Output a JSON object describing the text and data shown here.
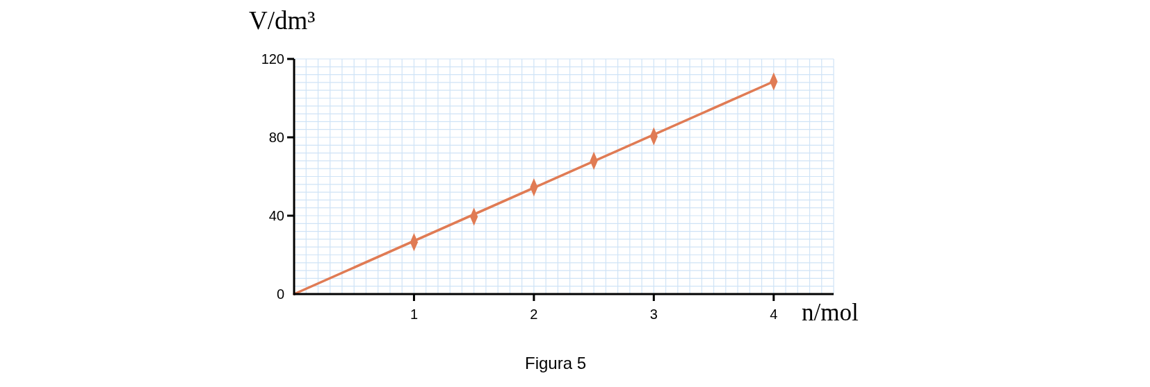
{
  "chart_data": {
    "type": "scatter",
    "xlabel": "n/mol",
    "ylabel": "V/dm³",
    "annotations": [
      "Figura 5"
    ],
    "xlim": [
      0,
      4.5
    ],
    "ylim": [
      0,
      120
    ],
    "xticks": [
      {
        "value": 0.1,
        "label": null
      },
      {
        "value": 0.2,
        "label": null
      },
      {
        "value": 0.3,
        "label": null
      },
      {
        "value": 0.4,
        "label": null
      },
      {
        "value": 0.5,
        "label": null
      },
      {
        "value": 0.6,
        "label": null
      },
      {
        "value": 0.7,
        "label": null
      },
      {
        "value": 0.8,
        "label": null
      },
      {
        "value": 0.9,
        "label": null
      },
      1,
      {
        "value": 1.1,
        "label": null
      },
      {
        "value": 1.2,
        "label": null
      },
      {
        "value": 1.3,
        "label": null
      },
      {
        "value": 1.4,
        "label": null
      },
      {
        "value": 1.5,
        "label": null
      },
      {
        "value": 1.6,
        "label": null
      },
      {
        "value": 1.7,
        "label": null
      },
      {
        "value": 1.8,
        "label": null
      },
      {
        "value": 1.9,
        "label": null
      },
      2,
      {
        "value": 2.1,
        "label": null
      },
      {
        "value": 2.2,
        "label": null
      },
      {
        "value": 2.3,
        "label": null
      },
      {
        "value": 2.4,
        "label": null
      },
      {
        "value": 2.5,
        "label": null
      },
      {
        "value": 2.6,
        "label": null
      },
      {
        "value": 2.7,
        "label": null
      },
      {
        "value": 2.8,
        "label": null
      },
      {
        "value": 2.9,
        "label": null
      },
      3,
      {
        "value": 3.1,
        "label": null
      },
      {
        "value": 3.2,
        "label": null
      },
      {
        "value": 3.3,
        "label": null
      },
      {
        "value": 3.4,
        "label": null
      },
      {
        "value": 3.5,
        "label": null
      },
      {
        "value": 3.6,
        "label": null
      },
      {
        "value": 3.7,
        "label": null
      },
      {
        "value": 3.8,
        "label": null
      },
      {
        "value": 3.9,
        "label": null
      },
      4,
      {
        "value": 4.1,
        "label": null
      },
      {
        "value": 4.2,
        "label": null
      },
      {
        "value": 4.3,
        "label": null
      },
      {
        "value": 4.4,
        "label": null
      },
      {
        "value": 4.5,
        "label": null
      }
    ],
    "yticks": [
      0,
      {
        "value": 4,
        "label": null
      },
      {
        "value": 8,
        "label": null
      },
      {
        "value": 12,
        "label": null
      },
      {
        "value": 16,
        "label": null
      },
      {
        "value": 20,
        "label": null
      },
      {
        "value": 24,
        "label": null
      },
      {
        "value": 28,
        "label": null
      },
      {
        "value": 32,
        "label": null
      },
      {
        "value": 36,
        "label": null
      },
      40,
      {
        "value": 44,
        "label": null
      },
      {
        "value": 48,
        "label": null
      },
      {
        "value": 52,
        "label": null
      },
      {
        "value": 56,
        "label": null
      },
      {
        "value": 60,
        "label": null
      },
      {
        "value": 64,
        "label": null
      },
      {
        "value": 68,
        "label": null
      },
      {
        "value": 72,
        "label": null
      },
      {
        "value": 76,
        "label": null
      },
      80,
      {
        "value": 84,
        "label": null
      },
      {
        "value": 88,
        "label": null
      },
      {
        "value": 92,
        "label": null
      },
      {
        "value": 96,
        "label": null
      },
      {
        "value": 100,
        "label": null
      },
      {
        "value": 104,
        "label": null
      },
      {
        "value": 108,
        "label": null
      },
      {
        "value": 112,
        "label": null
      },
      {
        "value": 116,
        "label": null
      },
      120
    ],
    "grid": true,
    "series": [
      {
        "type": "line",
        "color": "#e07b54",
        "x": [
          0,
          4
        ],
        "values": [
          0,
          108.5
        ],
        "marker": "none",
        "line_style": "solid"
      },
      {
        "color": "#e07b54",
        "x": [
          1,
          1.5,
          2,
          2.5,
          3,
          4
        ],
        "values": [
          26.5,
          39.5,
          54.5,
          68,
          80.5,
          108.5
        ],
        "marker": "diamond"
      }
    ]
  }
}
